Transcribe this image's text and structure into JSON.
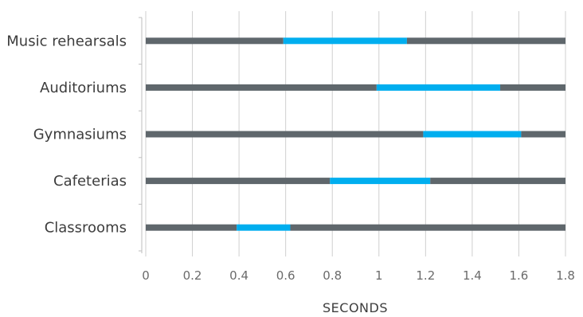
{
  "chart_data": {
    "type": "bar",
    "orientation": "horizontal",
    "stacked": true,
    "categories": [
      "Music rehearsals",
      "Auditoriums",
      "Gymnasiums",
      "Cafeterias",
      "Classrooms"
    ],
    "series": [
      {
        "values": [
          0.59,
          0.99,
          1.19,
          0.79,
          0.39
        ],
        "color": "#5f676c"
      },
      {
        "values": [
          0.53,
          0.53,
          0.42,
          0.43,
          0.23
        ],
        "color": "#00aeef"
      },
      {
        "values": [
          0.68,
          0.28,
          0.19,
          0.58,
          1.18
        ],
        "color": "#5f676c"
      }
    ],
    "xlabel": "SECONDS",
    "ylabel": "",
    "title": "",
    "xlim": [
      0,
      1.8
    ],
    "x_ticks": [
      0,
      0.2,
      0.4,
      0.6,
      0.8,
      1,
      1.2,
      1.4,
      1.6,
      1.8
    ],
    "x_tick_labels": [
      "0",
      "0.2",
      "0.4",
      "0.6",
      "0.8",
      "1",
      "1.2",
      "1.4",
      "1.6",
      "1.8"
    ],
    "grid": "vertical",
    "legend": "none"
  }
}
